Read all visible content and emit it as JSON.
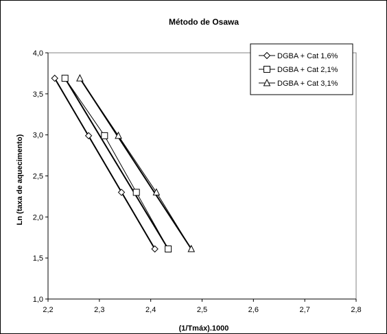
{
  "chart_data": {
    "type": "scatter",
    "title": "Método de Osawa",
    "xlabel": "(1/Tmáx).1000",
    "ylabel": "Ln (taxa de aquecimento)",
    "xlim": [
      2.2,
      2.8
    ],
    "ylim": [
      1.0,
      4.0
    ],
    "xticks": [
      "2,2",
      "2,3",
      "2,4",
      "2,5",
      "2,6",
      "2,7",
      "2,8"
    ],
    "yticks": [
      "1,0",
      "1,5",
      "2,0",
      "2,5",
      "3,0",
      "3,5",
      "4,0"
    ],
    "xtick_values": [
      2.2,
      2.3,
      2.4,
      2.5,
      2.6,
      2.7,
      2.8
    ],
    "ytick_values": [
      1.0,
      1.5,
      2.0,
      2.5,
      3.0,
      3.5,
      4.0
    ],
    "grid": false,
    "legend_position": "top-right",
    "series": [
      {
        "name": "DGBA + Cat 1,6%",
        "marker": "diamond",
        "x": [
          2.213,
          2.279,
          2.343,
          2.408
        ],
        "y": [
          3.69,
          2.99,
          2.3,
          1.61
        ],
        "fit": [
          [
            2.213,
            3.69
          ],
          [
            2.408,
            1.61
          ]
        ]
      },
      {
        "name": "DGBA + Cat 2,1%",
        "marker": "square",
        "x": [
          2.233,
          2.31,
          2.372,
          2.434
        ],
        "y": [
          3.69,
          2.99,
          2.3,
          1.61
        ],
        "fit": [
          [
            2.233,
            3.69
          ],
          [
            2.434,
            1.61
          ]
        ]
      },
      {
        "name": "DGBA + Cat 3,1%",
        "marker": "triangle",
        "x": [
          2.262,
          2.337,
          2.411,
          2.479
        ],
        "y": [
          3.69,
          2.99,
          2.3,
          1.61
        ],
        "fit": [
          [
            2.262,
            3.69
          ],
          [
            2.479,
            1.61
          ]
        ]
      }
    ]
  }
}
